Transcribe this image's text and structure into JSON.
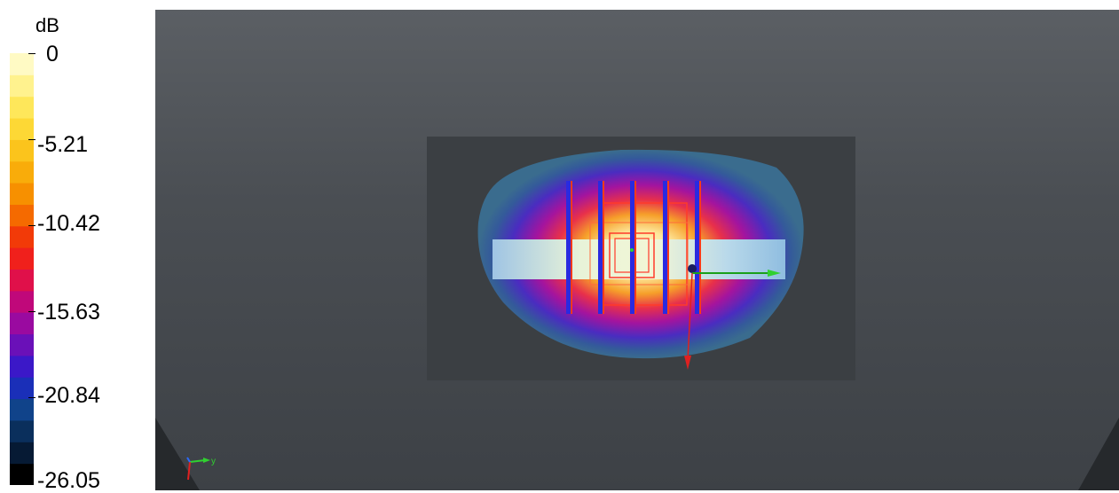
{
  "legend": {
    "unit": "dB",
    "ticks": [
      "0",
      "-5.21",
      "-10.42",
      "-15.63",
      "-20.84",
      "-26.05"
    ],
    "colors": [
      "#000000",
      "#061a34",
      "#0a2f5c",
      "#10438a",
      "#1a2fb8",
      "#3b18c8",
      "#6a10b8",
      "#9a0aa0",
      "#c0087a",
      "#e0104a",
      "#f0201c",
      "#f23a08",
      "#f56a00",
      "#f79000",
      "#f9ac0a",
      "#fbc41c",
      "#fdd835",
      "#fee75a",
      "#fff28e",
      "#fffac4"
    ]
  },
  "viewport": {
    "axis_triad": {
      "y_label": "y"
    }
  }
}
